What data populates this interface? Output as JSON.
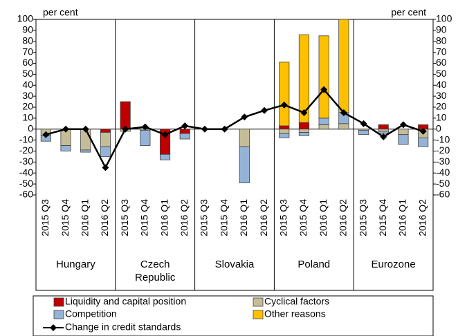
{
  "chart_data": {
    "type": "bar",
    "y_label": "per cent",
    "y2_label": "per cent",
    "categories": [
      "2015 Q3",
      "2015 Q4",
      "2016 Q1",
      "2016 Q2",
      "2015 Q3",
      "2015 Q4",
      "2016 Q1",
      "2016 Q2",
      "2015 Q3",
      "2015 Q4",
      "2016 Q1",
      "2016 Q2",
      "2015 Q3",
      "2015 Q4",
      "2016 Q1",
      "2016 Q2",
      "2015 Q3",
      "2015 Q4",
      "2016 Q1",
      "2016 Q2"
    ],
    "groups": [
      "Hungary",
      "Czech Republic",
      "Slovakia",
      "Poland",
      "Eurozone"
    ],
    "series": [
      {
        "name": "Liquidity and capital position",
        "color": "#c00000",
        "values": [
          0,
          0,
          0,
          -3,
          25,
          0,
          -23,
          -4,
          0,
          0,
          0,
          0,
          3,
          6,
          0,
          0,
          0,
          4,
          0,
          4
        ]
      },
      {
        "name": "Cyclical factors",
        "color": "#c4bd97",
        "values": [
          -6,
          -15,
          -19,
          -13,
          -2,
          -1,
          0,
          0,
          0,
          0,
          -16,
          0,
          -4,
          -3,
          4,
          5,
          -1,
          -2,
          -5,
          -8
        ]
      },
      {
        "name": "Competition",
        "color": "#95b3d7",
        "values": [
          -5,
          -5,
          -2,
          -9,
          0,
          -14,
          -5,
          -5,
          0,
          0,
          -33,
          0,
          -4,
          -3,
          6,
          10,
          -4,
          -2,
          -9,
          -8
        ]
      },
      {
        "name": "Other reasons",
        "color": "#ffc000",
        "values": [
          0,
          0,
          0,
          0,
          0,
          0,
          0,
          0,
          0,
          0,
          0,
          0,
          58,
          80,
          75,
          85,
          0,
          0,
          0,
          0
        ]
      }
    ],
    "line": {
      "name": "Change in credit standards",
      "color": "#000000",
      "values": [
        -5,
        0,
        0,
        -35,
        0,
        2,
        -5,
        3,
        0,
        0,
        11,
        17,
        22,
        15,
        36,
        15,
        5,
        -7,
        4,
        -2
      ]
    },
    "ylim": [
      -60,
      100
    ],
    "yticks": [
      -60,
      -50,
      -40,
      -30,
      -20,
      -10,
      0,
      10,
      20,
      30,
      40,
      50,
      60,
      70,
      80,
      90,
      100
    ],
    "y2lim": [
      -60,
      100
    ],
    "y2ticks": [
      -60,
      -50,
      -40,
      -30,
      -20,
      -10,
      0,
      10,
      20,
      30,
      40,
      50,
      60,
      70,
      80,
      90,
      100
    ]
  }
}
